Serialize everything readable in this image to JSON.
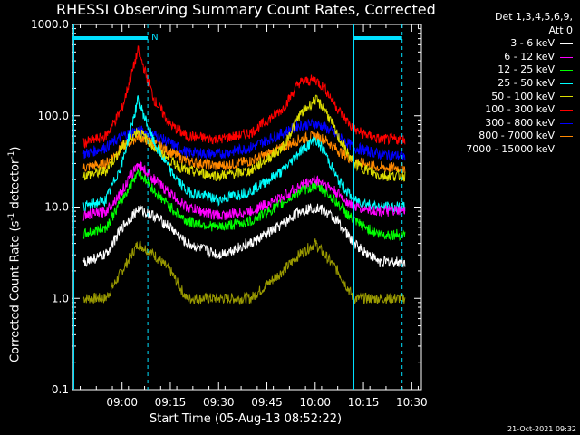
{
  "title": "RHESSI Observing Summary Count Rates, Corrected",
  "legend": {
    "header_line1": "Det 1,3,4,5,6,9,",
    "header_line2": "Att 0",
    "entries": [
      {
        "label": "3 - 6 keV",
        "color": "#ffffff"
      },
      {
        "label": "6 - 12 keV",
        "color": "#ff00ff"
      },
      {
        "label": "12 - 25 keV",
        "color": "#00ff00"
      },
      {
        "label": "25 - 50 keV",
        "color": "#00ffff"
      },
      {
        "label": "50 - 100 keV",
        "color": "#dddd00"
      },
      {
        "label": "100 - 300 keV",
        "color": "#ff0000"
      },
      {
        "label": "300 - 800 keV",
        "color": "#0000ff"
      },
      {
        "label": "800 - 7000 keV",
        "color": "#ff8800"
      },
      {
        "label": "7000 - 15000 keV",
        "color": "#999900"
      }
    ]
  },
  "footer": "21-Oct-2021 09:32",
  "chart_data": {
    "type": "line",
    "title": "RHESSI Observing Summary Count Rates, Corrected",
    "xlabel": "Start Time (05-Aug-13 08:52:22)",
    "ylabel": "Corrected Count Rate (s⁻¹ detector⁻¹)",
    "ylabel_main": "Corrected Count Rate (s",
    "ylabel_sup1": "-1",
    "ylabel_mid": " detector",
    "ylabel_sup2": "-1",
    "ylabel_end": ")",
    "y_scale": "log",
    "ylim": [
      0.1,
      1000
    ],
    "y_ticks": [
      "0.1",
      "1.0",
      "10.0",
      "100.0",
      "1000.0"
    ],
    "xlim_minutes_after_0852": [
      -7.4,
      101
    ],
    "x_ticks": [
      "09:00",
      "09:15",
      "09:30",
      "09:45",
      "10:00",
      "10:15",
      "10:30"
    ],
    "markers": {
      "night_label": "N",
      "solid_vertical_times": [
        "08:45",
        "10:12"
      ],
      "dashed_vertical_times": [
        "09:08",
        "10:27"
      ]
    },
    "series": [
      {
        "name": "3 - 6 keV",
        "color": "#ffffff",
        "time": [
          "08:48",
          "08:55",
          "09:00",
          "09:05",
          "09:10",
          "09:15",
          "09:20",
          "09:30",
          "09:40",
          "09:50",
          "09:55",
          "10:00",
          "10:03",
          "10:07",
          "10:12",
          "10:20",
          "10:28"
        ],
        "values": [
          2.5,
          3.0,
          6,
          9.5,
          8,
          6,
          4,
          3,
          4,
          6.5,
          9,
          10,
          9,
          7,
          4,
          2.5,
          2.5
        ]
      },
      {
        "name": "6 - 12 keV",
        "color": "#ff00ff",
        "time": [
          "08:48",
          "08:55",
          "09:00",
          "09:05",
          "09:10",
          "09:15",
          "09:20",
          "09:30",
          "09:40",
          "09:50",
          "09:55",
          "10:00",
          "10:03",
          "10:07",
          "10:12",
          "10:20",
          "10:28"
        ],
        "values": [
          8,
          9,
          15,
          30,
          20,
          14,
          10,
          8,
          9,
          13,
          17,
          20,
          18,
          14,
          10,
          9,
          9
        ]
      },
      {
        "name": "12 - 25 keV",
        "color": "#00ff00",
        "time": [
          "08:48",
          "08:55",
          "09:00",
          "09:05",
          "09:10",
          "09:15",
          "09:20",
          "09:30",
          "09:40",
          "09:50",
          "09:55",
          "10:00",
          "10:03",
          "10:07",
          "10:12",
          "10:20",
          "10:28"
        ],
        "values": [
          5,
          6,
          12,
          25,
          15,
          10,
          7,
          6,
          7,
          11,
          15,
          17,
          15,
          11,
          7,
          5,
          5
        ]
      },
      {
        "name": "25 - 50 keV",
        "color": "#00ffff",
        "time": [
          "08:48",
          "08:55",
          "09:00",
          "09:05",
          "09:10",
          "09:15",
          "09:20",
          "09:30",
          "09:40",
          "09:50",
          "09:55",
          "10:00",
          "10:03",
          "10:07",
          "10:12",
          "10:20",
          "10:28"
        ],
        "values": [
          10,
          12,
          30,
          150,
          50,
          25,
          15,
          12,
          15,
          25,
          40,
          55,
          40,
          20,
          12,
          10,
          10
        ]
      },
      {
        "name": "50 - 100 keV",
        "color": "#dddd00",
        "time": [
          "08:48",
          "08:55",
          "09:00",
          "09:05",
          "09:10",
          "09:15",
          "09:20",
          "09:30",
          "09:40",
          "09:50",
          "09:55",
          "10:00",
          "10:03",
          "10:07",
          "10:12",
          "10:20",
          "10:28"
        ],
        "values": [
          22,
          25,
          45,
          70,
          45,
          32,
          25,
          22,
          25,
          45,
          100,
          150,
          120,
          60,
          30,
          22,
          22
        ]
      },
      {
        "name": "100 - 300 keV",
        "color": "#ff0000",
        "time": [
          "08:48",
          "08:55",
          "09:00",
          "09:05",
          "09:10",
          "09:15",
          "09:20",
          "09:30",
          "09:40",
          "09:50",
          "09:55",
          "10:00",
          "10:03",
          "10:07",
          "10:12",
          "10:20",
          "10:28"
        ],
        "values": [
          50,
          60,
          120,
          520,
          150,
          80,
          60,
          55,
          65,
          120,
          230,
          250,
          200,
          120,
          70,
          55,
          55
        ]
      },
      {
        "name": "300 - 800 keV",
        "color": "#0000ff",
        "time": [
          "08:48",
          "08:55",
          "09:00",
          "09:05",
          "09:10",
          "09:15",
          "09:20",
          "09:30",
          "09:40",
          "09:50",
          "09:55",
          "10:00",
          "10:03",
          "10:07",
          "10:12",
          "10:20",
          "10:28"
        ],
        "values": [
          38,
          45,
          60,
          70,
          62,
          50,
          40,
          38,
          45,
          65,
          78,
          82,
          75,
          60,
          45,
          38,
          36
        ]
      },
      {
        "name": "800 - 7000 keV",
        "color": "#ff8800",
        "time": [
          "08:48",
          "08:55",
          "09:00",
          "09:05",
          "09:10",
          "09:15",
          "09:20",
          "09:30",
          "09:40",
          "09:50",
          "09:55",
          "10:00",
          "10:03",
          "10:07",
          "10:12",
          "10:20",
          "10:28"
        ],
        "values": [
          27,
          30,
          45,
          60,
          50,
          40,
          32,
          28,
          32,
          45,
          55,
          60,
          55,
          42,
          32,
          27,
          27
        ]
      },
      {
        "name": "7000 - 15000 keV",
        "color": "#999900",
        "time": [
          "08:48",
          "08:55",
          "09:00",
          "09:05",
          "09:10",
          "09:15",
          "09:20",
          "09:30",
          "09:40",
          "09:50",
          "09:55",
          "10:00",
          "10:03",
          "10:07",
          "10:12",
          "10:20",
          "10:28"
        ],
        "values": [
          1,
          1,
          2,
          4,
          3,
          2,
          1,
          1,
          1,
          2,
          3,
          4,
          3,
          2,
          1,
          1,
          1
        ]
      }
    ]
  }
}
